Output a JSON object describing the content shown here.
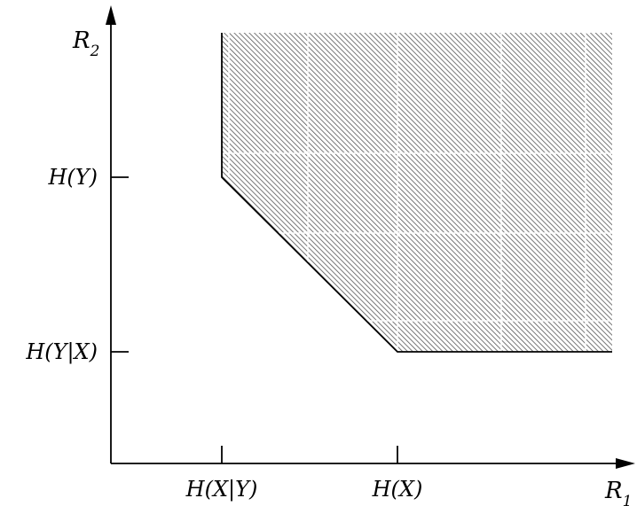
{
  "diagram": {
    "axes": {
      "x_label": "R",
      "x_label_subscript": "1",
      "y_label": "R",
      "y_label_subscript": "2"
    },
    "x_ticks": [
      "H(X|Y)",
      "H(X)"
    ],
    "y_ticks": [
      "H(Y)",
      "H(Y|X)"
    ],
    "colors": {
      "line": "#000000",
      "hatch": "#555555",
      "background": "#ffffff"
    }
  }
}
